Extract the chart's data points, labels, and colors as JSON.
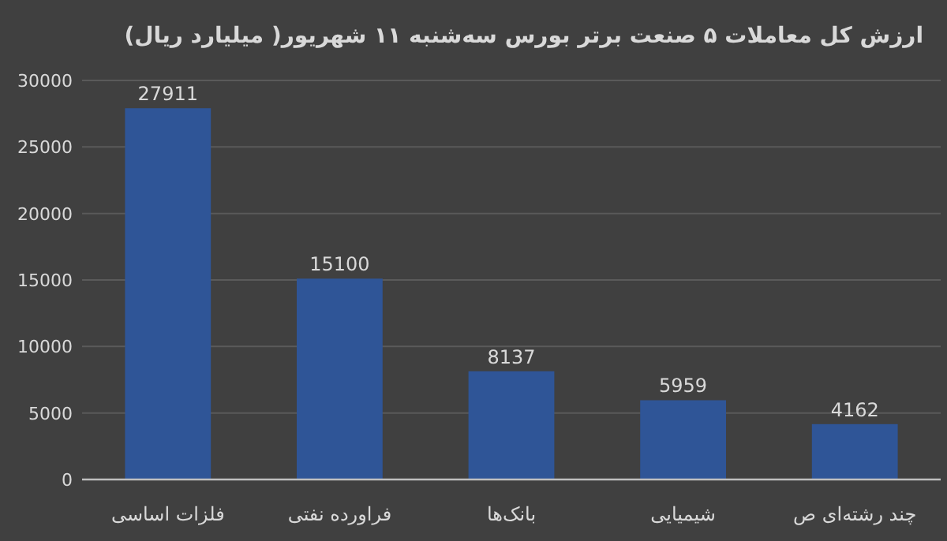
{
  "chart_data": {
    "type": "bar",
    "title": "ارزش کل معاملات ۵ صنعت برتر بورس سه‌شنبه ۱۱ شهریور( میلیارد ریال)",
    "categories": [
      "فلزات اساسی",
      "فراورده نفتی",
      "بانک‌ها",
      "شیمیایی",
      "چند رشته‌ای ص"
    ],
    "values": [
      27911,
      15100,
      8137,
      5959,
      4162
    ],
    "color": "#2f5597",
    "ylim": [
      0,
      30000
    ],
    "yticks": [
      0,
      5000,
      10000,
      15000,
      20000,
      25000,
      30000
    ],
    "grid": "y",
    "data_labels": true
  }
}
